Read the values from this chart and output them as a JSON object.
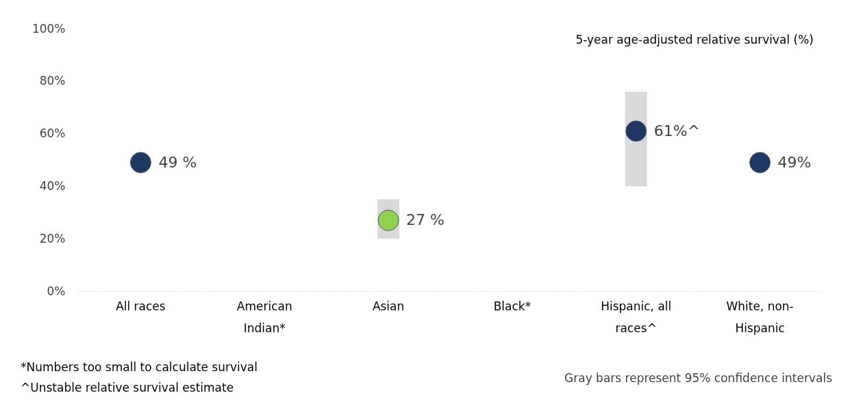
{
  "chart_data": {
    "type": "scatter",
    "title": "5-year age-adjusted relative survival (%)",
    "categories": [
      "All races",
      "American Indian*",
      "Asian",
      "Black*",
      "Hispanic, all races^",
      "White, non-Hispanic"
    ],
    "values": [
      49,
      null,
      27,
      null,
      61,
      49
    ],
    "colors": [
      "#1f3864",
      "#1f3864",
      "#92d050",
      "#1f3864",
      "#1f3864",
      "#1f3864"
    ],
    "errors": [
      null,
      null,
      [
        20,
        35
      ],
      null,
      [
        40,
        76
      ],
      null
    ],
    "value_labels": [
      "49 %",
      null,
      "27 %",
      null,
      "61%^",
      "49%"
    ],
    "marker": "circle",
    "ylim": [
      0,
      100
    ],
    "yticks": [
      {
        "value": 0,
        "label": "0%"
      },
      {
        "value": 20,
        "label": "20%"
      },
      {
        "value": 40,
        "label": "40%"
      },
      {
        "value": 60,
        "label": "60%"
      },
      {
        "value": 80,
        "label": "80%"
      },
      {
        "value": 100,
        "label": "100%"
      }
    ],
    "grid": false,
    "annotations": [
      "*Numbers too small to calculate survival",
      "^Unstable relative survival estimate",
      "Gray bars represent 95% confidence intervals"
    ]
  }
}
